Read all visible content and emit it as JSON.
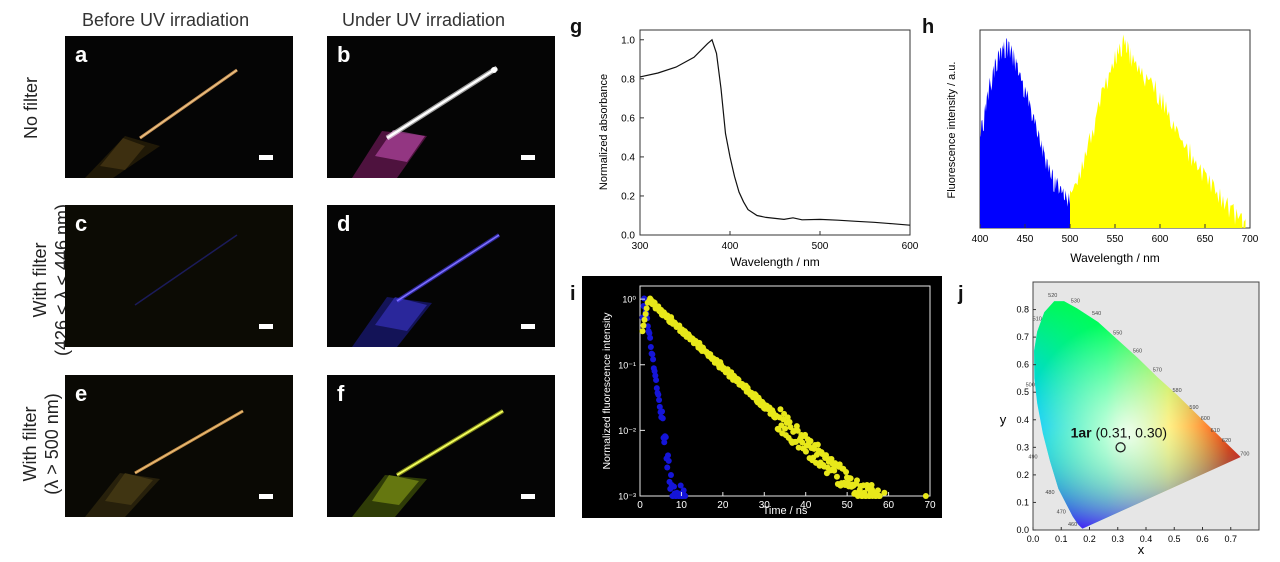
{
  "columns": {
    "before": "Before UV irradiation",
    "under": "Under UV irradiation"
  },
  "rows": [
    {
      "line1": "No filter",
      "line2": ""
    },
    {
      "line1": "With filter",
      "line2": "(426 < λ < 446 nm)"
    },
    {
      "line1": "With filter",
      "line2": "(λ > 500 nm)"
    }
  ],
  "photos": [
    {
      "label": "a",
      "glow": "#d9a46a"
    },
    {
      "label": "b",
      "glow": "#ffffff"
    },
    {
      "label": "c",
      "glow": "#1a1a6a"
    },
    {
      "label": "d",
      "glow": "#5b48ff"
    },
    {
      "label": "e",
      "glow": "#d09a52"
    },
    {
      "label": "f",
      "glow": "#e8f23a"
    }
  ],
  "chart_data": [
    {
      "panel": "g",
      "type": "line",
      "xlabel": "Wavelength / nm",
      "ylabel": "Normalized absorbance",
      "xlim": [
        300,
        600
      ],
      "ylim": [
        0,
        1.05
      ],
      "xticks": [
        "300",
        "400",
        "500",
        "600"
      ],
      "yticks": [
        "0.0",
        "0.2",
        "0.4",
        "0.6",
        "0.8",
        "1.0"
      ],
      "x": [
        300,
        320,
        340,
        360,
        375,
        380,
        385,
        390,
        395,
        400,
        405,
        410,
        415,
        420,
        430,
        440,
        450,
        460,
        470,
        480,
        500,
        520,
        540,
        560,
        580,
        600
      ],
      "y": [
        0.81,
        0.83,
        0.86,
        0.91,
        0.98,
        1.0,
        0.93,
        0.75,
        0.52,
        0.4,
        0.3,
        0.22,
        0.17,
        0.13,
        0.1,
        0.09,
        0.085,
        0.08,
        0.088,
        0.078,
        0.08,
        0.076,
        0.07,
        0.065,
        0.058,
        0.05
      ]
    },
    {
      "panel": "h",
      "type": "area",
      "xlabel": "Wavelength / nm",
      "ylabel": "Fluorescence intensity / a.u.",
      "xlim": [
        400,
        700
      ],
      "ylim": [
        0,
        1.05
      ],
      "xticks": [
        "400",
        "450",
        "500",
        "550",
        "600",
        "650",
        "700"
      ],
      "series": [
        {
          "name": "blue",
          "color": "#0000ff",
          "x": [
            400,
            405,
            410,
            415,
            420,
            425,
            430,
            435,
            440,
            445,
            450,
            455,
            460,
            465,
            470,
            475,
            480,
            485,
            490,
            495,
            500
          ],
          "y": [
            0.5,
            0.62,
            0.75,
            0.86,
            0.93,
            0.97,
            1.0,
            0.97,
            0.9,
            0.82,
            0.75,
            0.68,
            0.6,
            0.52,
            0.44,
            0.36,
            0.3,
            0.25,
            0.22,
            0.2,
            0.18
          ]
        },
        {
          "name": "yellow",
          "color": "#ffff00",
          "x": [
            500,
            510,
            520,
            530,
            540,
            550,
            555,
            560,
            565,
            570,
            580,
            590,
            600,
            610,
            620,
            630,
            640,
            650,
            660,
            670,
            680,
            690,
            695
          ],
          "y": [
            0.2,
            0.3,
            0.45,
            0.62,
            0.8,
            0.94,
            0.98,
            1.0,
            0.97,
            0.92,
            0.85,
            0.8,
            0.72,
            0.62,
            0.52,
            0.45,
            0.36,
            0.3,
            0.24,
            0.17,
            0.12,
            0.08,
            0.05
          ]
        }
      ]
    },
    {
      "panel": "i",
      "type": "scatter",
      "xlabel": "Time / ns",
      "ylabel": "Normalized fluorescence intensity",
      "xlim": [
        0,
        70
      ],
      "ylim_log10": [
        -3,
        0.2
      ],
      "xticks": [
        "0",
        "10",
        "20",
        "30",
        "40",
        "50",
        "60",
        "70"
      ],
      "yticks": [
        "10⁻³",
        "10⁻²",
        "10⁻¹",
        "10⁰"
      ],
      "series": [
        {
          "name": "blue",
          "color": "#1515d8",
          "tau_ns": 1.0,
          "start_ns": 1.0,
          "end_ns": 11
        },
        {
          "name": "yellow",
          "color": "#e8e81a",
          "tau_ns": 7.5,
          "start_ns": 2.0,
          "end_ns": 58
        },
        {
          "name": "yellow-tail",
          "color": "#e8e81a",
          "points": [
            [
              69,
              -3.0
            ],
            [
              59,
              -2.95
            ],
            [
              56,
              -2.9
            ]
          ]
        }
      ]
    },
    {
      "panel": "j",
      "type": "scatter",
      "xlabel": "x",
      "ylabel": "y",
      "xlim": [
        0,
        0.8
      ],
      "ylim": [
        0,
        0.9
      ],
      "xticks": [
        "0.0",
        "0.1",
        "0.2",
        "0.3",
        "0.4",
        "0.5",
        "0.6",
        "0.7"
      ],
      "yticks": [
        "0.0",
        "0.1",
        "0.2",
        "0.3",
        "0.4",
        "0.5",
        "0.6",
        "0.7",
        "0.8"
      ],
      "point": {
        "x": 0.31,
        "y": 0.3
      },
      "annotation_bold": "1ar",
      "annotation_rest": " (0.31, 0.30)",
      "wavelength_labels": [
        "520",
        "530",
        "540",
        "510",
        "550",
        "560",
        "570",
        "500",
        "580",
        "590",
        "600",
        "610",
        "620",
        "700",
        "490",
        "480",
        "470",
        "460"
      ]
    }
  ]
}
